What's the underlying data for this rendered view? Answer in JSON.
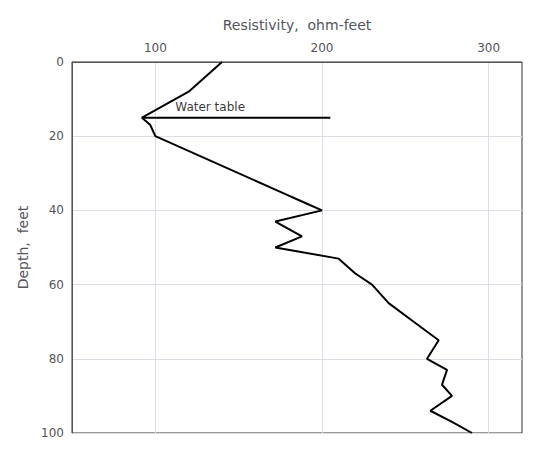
{
  "chart_data": {
    "type": "line",
    "xlabel": "Resistivity,  ohm-feet",
    "ylabel": "Depth,  feet",
    "x": [
      140,
      120,
      92,
      97,
      100,
      135,
      175,
      190,
      200,
      172,
      188,
      172,
      210,
      220,
      230,
      240,
      255,
      270,
      263,
      275,
      272,
      278,
      265,
      278,
      290
    ],
    "values": [
      0,
      8,
      15,
      17,
      20,
      27,
      35,
      38,
      40,
      43,
      47,
      50,
      53,
      57,
      60,
      65,
      70,
      75,
      80,
      83,
      87,
      90,
      94,
      97,
      100
    ],
    "color": "#000000",
    "xlim": [
      50,
      320
    ],
    "xticks": [
      100,
      200,
      300
    ],
    "ylim": [
      100,
      0
    ],
    "yticks": [
      0,
      20,
      40,
      60,
      80,
      100
    ],
    "grid": true,
    "water_table": {
      "depth": 15,
      "x_start": 92,
      "x_end": 205
    },
    "annotations": [
      {
        "text": "Water table",
        "x": 112,
        "y": 12
      }
    ]
  }
}
